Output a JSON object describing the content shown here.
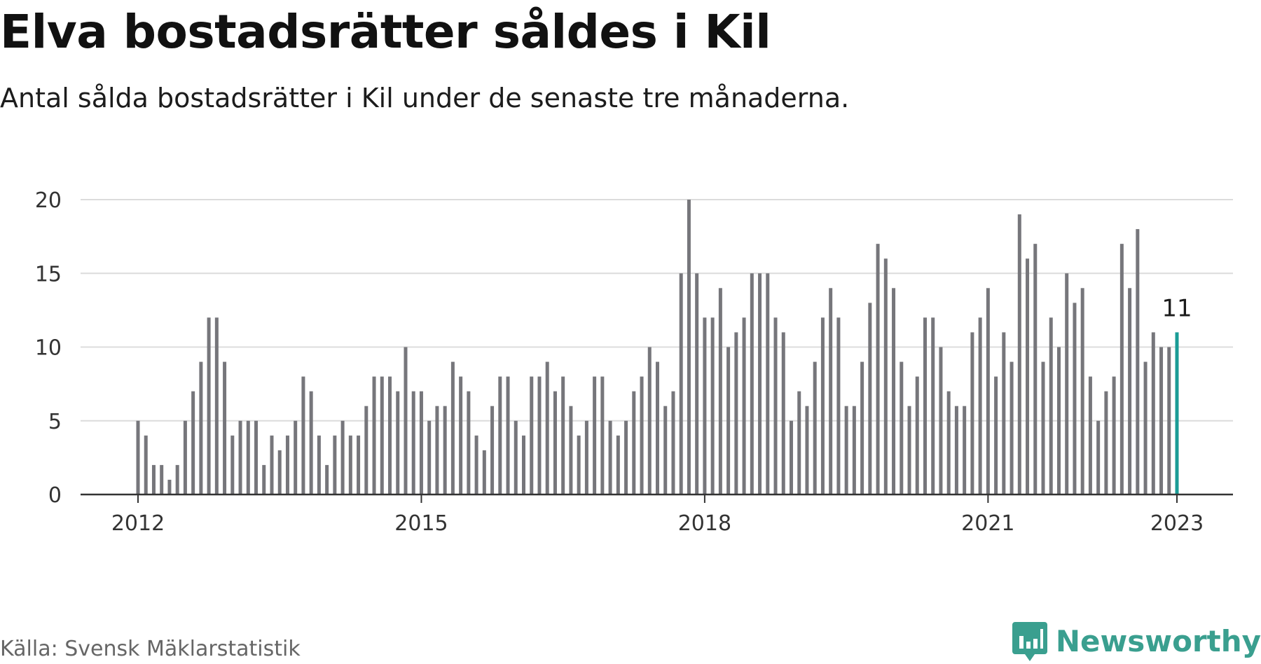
{
  "header": {
    "title": "Elva bostadsrätter såldes i Kil",
    "subtitle": "Antal sålda bostadsrätter i Kil under de senaste tre månaderna."
  },
  "footer": {
    "source": "Källa: Svensk Mäklarstatistik",
    "logo_text": "Newsworthy"
  },
  "colors": {
    "bar": "#76767b",
    "highlight": "#1a9c96",
    "grid": "#dcdcdc",
    "axis": "#333333",
    "brand": "#3a9f8f"
  },
  "chart_data": {
    "type": "bar",
    "title": "Elva bostadsrätter såldes i Kil",
    "subtitle": "Antal sålda bostadsrätter i Kil under de senaste tre månaderna.",
    "xlabel": "",
    "ylabel": "",
    "x_period": "monthly, Jan 2012 – Jan 2023",
    "x_start": "2012-01",
    "x_end": "2023-01",
    "ylim": [
      0,
      20
    ],
    "yticks": [
      0,
      5,
      10,
      15,
      20
    ],
    "xticks": [
      "2012",
      "2015",
      "2018",
      "2021",
      "2023"
    ],
    "grid": true,
    "values": [
      5,
      4,
      2,
      2,
      1,
      2,
      5,
      7,
      9,
      12,
      12,
      9,
      4,
      5,
      5,
      5,
      2,
      4,
      3,
      4,
      5,
      8,
      7,
      4,
      2,
      4,
      5,
      4,
      4,
      6,
      8,
      8,
      8,
      7,
      10,
      7,
      7,
      5,
      6,
      6,
      9,
      8,
      7,
      4,
      3,
      6,
      8,
      8,
      5,
      4,
      8,
      8,
      9,
      7,
      8,
      6,
      4,
      5,
      8,
      8,
      5,
      4,
      5,
      7,
      8,
      10,
      9,
      6,
      7,
      15,
      20,
      15,
      12,
      12,
      14,
      10,
      11,
      12,
      15,
      15,
      15,
      12,
      11,
      5,
      7,
      6,
      9,
      12,
      14,
      12,
      6,
      6,
      9,
      13,
      17,
      16,
      14,
      9,
      6,
      8,
      12,
      12,
      10,
      7,
      6,
      6,
      11,
      12,
      14,
      8,
      11,
      9,
      19,
      16,
      17,
      9,
      12,
      10,
      15,
      13,
      14,
      8,
      5,
      7,
      8,
      17,
      14,
      18,
      9,
      11,
      10,
      10,
      11
    ],
    "highlight_last": true,
    "annotation": {
      "label": "11",
      "target": "last"
    }
  }
}
